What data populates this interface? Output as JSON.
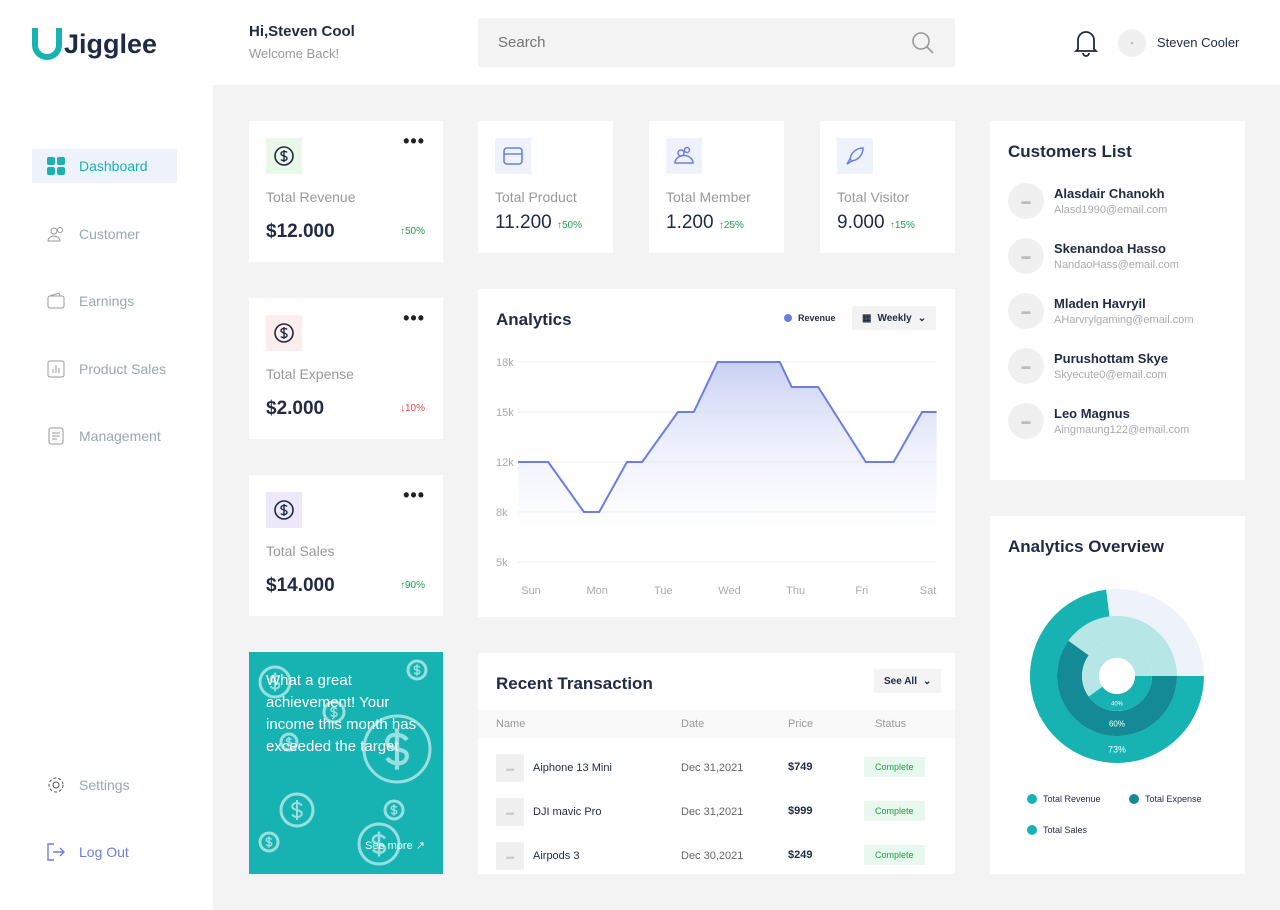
{
  "brand": {
    "name": "Jigglee",
    "accent": "#17b3b3"
  },
  "header": {
    "greeting": "Hi,Steven Cool",
    "subtitle": "Welcome Back!",
    "search_placeholder": "Search",
    "user_name": "Steven Cooler",
    "avatar_text": "▪"
  },
  "sidebar": {
    "items": [
      {
        "label": "Dashboard",
        "icon": "grid-icon",
        "active": true
      },
      {
        "label": "Customer",
        "icon": "users-icon"
      },
      {
        "label": "Earnings",
        "icon": "wallet-icon"
      },
      {
        "label": "Product Sales",
        "icon": "bar-chart-icon"
      },
      {
        "label": "Management",
        "icon": "document-icon"
      }
    ],
    "settings": "Settings",
    "logout": "Log Out"
  },
  "stats": [
    {
      "label": "Total Revenue",
      "value": "$12.000",
      "change": "↑50%",
      "trend": "up",
      "more": "•••"
    },
    {
      "label": "Total Expense",
      "value": "$2.000",
      "change": "↓10%",
      "trend": "down",
      "more": "•••"
    },
    {
      "label": "Total Sales",
      "value": "$14.000",
      "change": "↑90%",
      "trend": "up",
      "more": "•••"
    },
    {
      "label": "Total Product",
      "value": "11.200",
      "change": "↑50%"
    },
    {
      "label": "Total Member",
      "value": "1.200",
      "change": "↑25%"
    },
    {
      "label": "Total Visitor",
      "value": "9.000",
      "change": "↑15%"
    }
  ],
  "promo": {
    "text": "What a great achievement! Your income this month has exceeded the target",
    "link": "See more ↗"
  },
  "analytics": {
    "title": "Analytics",
    "legend": "Revenue",
    "period": "Weekly"
  },
  "chart_data": {
    "type": "area",
    "title": "Analytics",
    "categories": [
      "Sun",
      "Mon",
      "Tue",
      "Wed",
      "Thu",
      "Fri",
      "Sat"
    ],
    "yticks": [
      "5k",
      "8k",
      "12k",
      "15k",
      "18k"
    ],
    "ytick_values": [
      5,
      8,
      12,
      15,
      18
    ],
    "series": [
      {
        "name": "Revenue",
        "color": "#6b7fe0",
        "x": [
          -0.2,
          0.26,
          0.8,
          1.03,
          1.45,
          1.68,
          2.22,
          2.46,
          2.82,
          3.76,
          3.94,
          4.34,
          5.06,
          5.48,
          5.91,
          6.13
        ],
        "y": [
          12,
          12,
          8,
          8,
          12,
          12,
          15,
          15,
          18,
          18,
          16.5,
          16.5,
          12,
          12,
          15,
          15
        ]
      }
    ],
    "grid": true,
    "legend": "top-right"
  },
  "transactions": {
    "title": "Recent Transaction",
    "see_all": "See All",
    "columns": [
      "Name",
      "Date",
      "Price",
      "Status"
    ],
    "rows": [
      {
        "name": "Aiphone 13 Mini",
        "date": "Dec 31,2021",
        "price": "$749",
        "status": "Complete"
      },
      {
        "name": "DJI mavic Pro",
        "date": "Dec 31,2021",
        "price": "$999",
        "status": "Complete"
      },
      {
        "name": "Airpods 3",
        "date": "Dec 30,2021",
        "price": "$249",
        "status": "Complete"
      }
    ]
  },
  "customers": {
    "title": "Customers List",
    "items": [
      {
        "name": "Alasdair Chanokh",
        "email": "Alasd1990@email.com"
      },
      {
        "name": "Skenandoa Hasso",
        "email": "NandaoHass@email.com"
      },
      {
        "name": "Mladen Havryil",
        "email": "AHarvrylgaming@email.com"
      },
      {
        "name": "Purushottam Skye",
        "email": "Skyecute0@email.com"
      },
      {
        "name": "Leo Magnus",
        "email": "Aingmaung122@email.com"
      }
    ]
  },
  "overview": {
    "title": "Analytics Overview",
    "chart_data": {
      "type": "pie",
      "rings": [
        {
          "name": "Total Revenue",
          "value": 73,
          "label": "73%",
          "color": "#17b3b3",
          "rest": "#eef3fb"
        },
        {
          "name": "Total Expense",
          "value": 60,
          "label": "60%",
          "color": "#138a96",
          "rest": "#b6e6e6"
        },
        {
          "name": "Total Sales",
          "value": 40,
          "label": "40%",
          "color": "#17b3b3",
          "rest": "#b6e6e6"
        }
      ]
    }
  }
}
